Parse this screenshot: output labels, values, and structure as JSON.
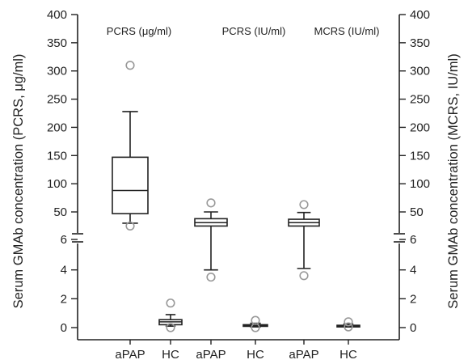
{
  "chart_data": {
    "type": "box",
    "y_label_left": "Serum GMAb concentration (PCRS, μg/ml)",
    "y_label_right": "Serum GMAb concentration (MCRS, IU/ml)",
    "y_axis_break": true,
    "y_lower_range": [
      0,
      6
    ],
    "y_upper_range": [
      6,
      400
    ],
    "y_ticks_lower": [
      "0",
      "2",
      "4",
      "6"
    ],
    "y_ticks_upper": [
      "50",
      "100",
      "150",
      "200",
      "250",
      "300",
      "350",
      "400"
    ],
    "groups": [
      {
        "label": "PCRS (μg/ml)"
      },
      {
        "label": "PCRS (IU/ml)"
      },
      {
        "label": "MCRS (IU/ml)"
      }
    ],
    "categories": [
      "aPAP",
      "HC",
      "aPAP",
      "HC",
      "aPAP",
      "HC"
    ],
    "boxes": [
      {
        "group": 0,
        "category": "aPAP",
        "whisker_low": 30,
        "q1": 47,
        "median": 88,
        "q3": 147,
        "whisker_high": 228,
        "outliers": [
          310,
          25
        ]
      },
      {
        "group": 0,
        "category": "HC",
        "whisker_low": 0.1,
        "q1": 0.2,
        "median": 0.4,
        "q3": 0.55,
        "whisker_high": 0.9,
        "outliers": [
          1.7,
          0.0
        ]
      },
      {
        "group": 1,
        "category": "aPAP",
        "whisker_low": 4.0,
        "q1": 25,
        "median": 31,
        "q3": 38,
        "whisker_high": 50,
        "outliers": [
          66,
          3.5
        ]
      },
      {
        "group": 1,
        "category": "HC",
        "whisker_low": 0.05,
        "q1": 0.1,
        "median": 0.15,
        "q3": 0.2,
        "whisker_high": 0.3,
        "outliers": [
          0.5,
          0.0
        ]
      },
      {
        "group": 2,
        "category": "aPAP",
        "whisker_low": 4.1,
        "q1": 25,
        "median": 31,
        "q3": 37,
        "whisker_high": 49,
        "outliers": [
          63,
          3.6
        ]
      },
      {
        "group": 2,
        "category": "HC",
        "whisker_low": 0.05,
        "q1": 0.08,
        "median": 0.12,
        "q3": 0.16,
        "whisker_high": 0.25,
        "outliers": [
          0.4,
          0.05
        ]
      }
    ]
  }
}
